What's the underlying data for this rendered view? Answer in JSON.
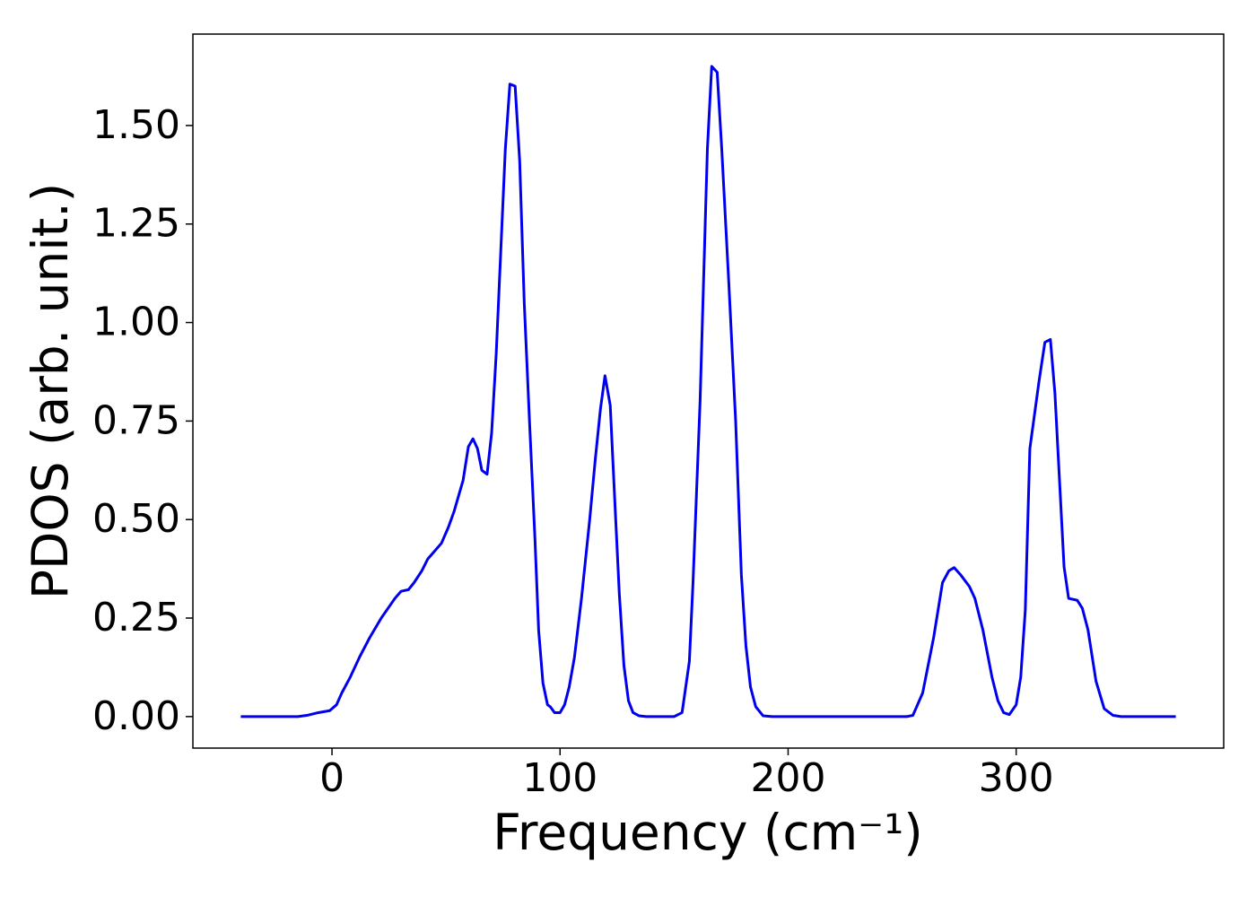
{
  "chart_data": {
    "type": "line",
    "x_label": "Frequency (cm⁻¹)",
    "y_label": "PDOS (arb. unit.)",
    "xlim": [
      -61,
      391
    ],
    "ylim": [
      -0.08,
      1.732
    ],
    "xticks": [
      0,
      100,
      200,
      300
    ],
    "yticks": [
      {
        "value": 0,
        "label": "0.00"
      },
      {
        "value": 0.25,
        "label": "0.25"
      },
      {
        "value": 0.5,
        "label": "0.50"
      },
      {
        "value": 0.75,
        "label": "0.75"
      },
      {
        "value": 1,
        "label": "1.00"
      },
      {
        "value": 1.25,
        "label": "1.25"
      },
      {
        "value": 1.5,
        "label": "1.50"
      }
    ],
    "grid": false,
    "series": [
      {
        "color": "#0000ee",
        "x": [
          -40,
          -20,
          -15,
          -11,
          -6,
          -1,
          2,
          4.3,
          8,
          12,
          16.5,
          21.6,
          27.6,
          30.3,
          33.5,
          36,
          39.4,
          42,
          45,
          48,
          51,
          53.5,
          56,
          57.5,
          59.8,
          61.8,
          63.8,
          65.7,
          68,
          70,
          72,
          74,
          76,
          78,
          80.3,
          82.3,
          84.3,
          86.6,
          89,
          90.6,
          92.5,
          94.5,
          95.7,
          97.6,
          100,
          102,
          104,
          106.3,
          109.4,
          113,
          115.4,
          117.7,
          119.7,
          122,
          124.4,
          126,
          128,
          130,
          132,
          134.6,
          137.8,
          150,
          153.5,
          156.7,
          158.3,
          161.4,
          164.6,
          166.5,
          168.9,
          170.9,
          174,
          177,
          179.5,
          181.5,
          183.5,
          185.8,
          189,
          193,
          220,
          252,
          254.7,
          256,
          259,
          263.8,
          267.7,
          270.5,
          272.8,
          275.6,
          279.5,
          281.9,
          285.4,
          289.4,
          292,
          294.5,
          297,
          300,
          302,
          304,
          306,
          310,
          312.6,
          315,
          317,
          321,
          323,
          326.8,
          329,
          331.5,
          335,
          338.6,
          342.5,
          346,
          370
        ],
        "values": [
          0,
          0,
          0,
          0.003,
          0.01,
          0.015,
          0.03,
          0.06,
          0.1,
          0.15,
          0.2,
          0.25,
          0.3,
          0.318,
          0.322,
          0.34,
          0.37,
          0.4,
          0.42,
          0.44,
          0.48,
          0.52,
          0.57,
          0.6,
          0.685,
          0.705,
          0.68,
          0.625,
          0.615,
          0.72,
          0.92,
          1.18,
          1.44,
          1.605,
          1.6,
          1.41,
          1.05,
          0.75,
          0.45,
          0.22,
          0.085,
          0.03,
          0.025,
          0.01,
          0.01,
          0.03,
          0.075,
          0.15,
          0.3,
          0.5,
          0.65,
          0.78,
          0.865,
          0.79,
          0.5,
          0.31,
          0.13,
          0.04,
          0.01,
          0.002,
          0,
          0,
          0.01,
          0.14,
          0.34,
          0.8,
          1.44,
          1.65,
          1.635,
          1.44,
          1.1,
          0.75,
          0.36,
          0.18,
          0.075,
          0.025,
          0.002,
          0,
          0,
          0,
          0.003,
          0.02,
          0.06,
          0.2,
          0.34,
          0.37,
          0.378,
          0.36,
          0.33,
          0.3,
          0.22,
          0.1,
          0.04,
          0.01,
          0.005,
          0.03,
          0.1,
          0.27,
          0.68,
          0.85,
          0.95,
          0.957,
          0.82,
          0.38,
          0.3,
          0.295,
          0.275,
          0.22,
          0.09,
          0.02,
          0.003,
          0,
          0
        ]
      }
    ]
  }
}
